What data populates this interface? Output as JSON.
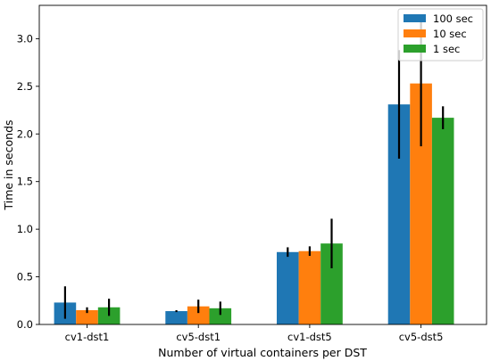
{
  "chart_data": {
    "type": "bar",
    "title": "",
    "xlabel": "Number of virtual containers per DST",
    "ylabel": "Time in seconds",
    "categories": [
      "cv1-dst1",
      "cv5-dst1",
      "cv1-dst5",
      "cv5-dst5"
    ],
    "ylim": [
      0,
      3.35
    ],
    "yticks": [
      "0.0",
      "0.5",
      "1.0",
      "1.5",
      "2.0",
      "2.5",
      "3.0"
    ],
    "grid": false,
    "legend_position": "top-right",
    "series": [
      {
        "name": "100 sec",
        "color": "#1f77b4",
        "values": [
          0.23,
          0.14,
          0.76,
          2.31
        ],
        "errors": [
          0.17,
          0.01,
          0.05,
          0.57
        ]
      },
      {
        "name": "10 sec",
        "color": "#ff7f0e",
        "values": [
          0.15,
          0.19,
          0.77,
          2.53
        ],
        "errors": [
          0.03,
          0.07,
          0.05,
          0.66
        ]
      },
      {
        "name": "1 sec",
        "color": "#2ca02c",
        "values": [
          0.18,
          0.17,
          0.85,
          2.17
        ],
        "errors": [
          0.09,
          0.07,
          0.26,
          0.12
        ]
      }
    ]
  }
}
